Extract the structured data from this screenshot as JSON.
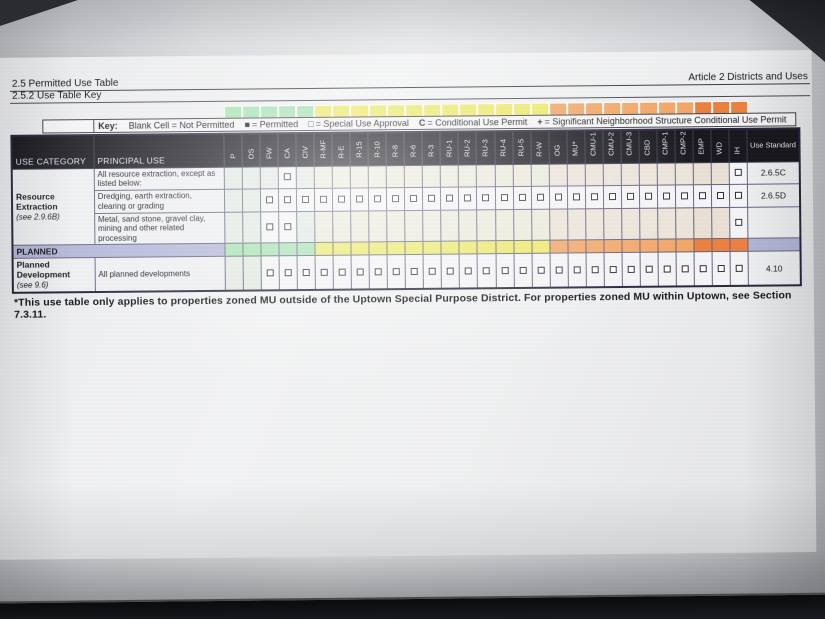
{
  "header": {
    "section_title": "2.5 Permitted Use Table",
    "section_subtitle": "2.5.2 Use Table Key",
    "article_title": "Article 2 Districts and Uses"
  },
  "key": {
    "label": "Key:",
    "items": [
      {
        "symbol": "",
        "text": "Blank Cell = Not Permitted"
      },
      {
        "symbol": "■",
        "text": "= Permitted"
      },
      {
        "symbol": "□",
        "text": "= Special Use Approval"
      },
      {
        "symbol": "C",
        "text": "= Conditional Use Permit"
      },
      {
        "symbol": "+",
        "text": "= Significant Neighborhood Structure Conditional Use Permit"
      }
    ]
  },
  "colors": {
    "header_bg": "#17171d",
    "group_green": "#a6e2b0",
    "group_yellow": "#ece968",
    "group_orange_light": "#f2a768",
    "group_orange_dark": "#ec8140",
    "planned_band": "#b2b6d6",
    "tint_green": "#e2e9e2",
    "tint_yellow": "#eceadb",
    "tint_orange_light": "#ece4d9",
    "tint_orange_dark": "#eadfd3",
    "cell_marked": "#f4f4f6"
  },
  "table": {
    "headers": {
      "use_category": "USE CATEGORY",
      "principal_use": "PRINCIPAL USE",
      "use_standard": "Use Standard"
    },
    "mark_symbol": "□",
    "districts": [
      {
        "label": "P",
        "group": "green"
      },
      {
        "label": "OS",
        "group": "green"
      },
      {
        "label": "FW",
        "group": "green"
      },
      {
        "label": "CA",
        "group": "green"
      },
      {
        "label": "CIV",
        "group": "green"
      },
      {
        "label": "R-MF",
        "group": "yellow"
      },
      {
        "label": "R-E",
        "group": "yellow"
      },
      {
        "label": "R-15",
        "group": "yellow"
      },
      {
        "label": "R-10",
        "group": "yellow"
      },
      {
        "label": "R-8",
        "group": "yellow"
      },
      {
        "label": "R-6",
        "group": "yellow"
      },
      {
        "label": "R-3",
        "group": "yellow"
      },
      {
        "label": "RU-1",
        "group": "yellow"
      },
      {
        "label": "RU-2",
        "group": "yellow"
      },
      {
        "label": "RU-3",
        "group": "yellow"
      },
      {
        "label": "RU-4",
        "group": "yellow"
      },
      {
        "label": "RU-5",
        "group": "yellow"
      },
      {
        "label": "R-W",
        "group": "yellow"
      },
      {
        "label": "OG",
        "group": "orange_light"
      },
      {
        "label": "MU*",
        "group": "orange_light"
      },
      {
        "label": "CMU-1",
        "group": "orange_light"
      },
      {
        "label": "CMU-2",
        "group": "orange_light"
      },
      {
        "label": "CMU-3",
        "group": "orange_light"
      },
      {
        "label": "CBD",
        "group": "orange_light"
      },
      {
        "label": "CMP-1",
        "group": "orange_light"
      },
      {
        "label": "CMP-2",
        "group": "orange_light"
      },
      {
        "label": "EMP",
        "group": "orange_dark"
      },
      {
        "label": "WD",
        "group": "orange_dark"
      },
      {
        "label": "IH",
        "group": "orange_dark"
      }
    ],
    "rows": [
      {
        "type": "use",
        "category": "Resource Extraction",
        "category_note": "(see 2.9.6B)",
        "rowspan": 3,
        "principal_use": "All resource extraction, except as listed below:",
        "marks": [
          "CA",
          "IH"
        ],
        "use_standard": "2.6.5C"
      },
      {
        "type": "use",
        "principal_use": "Dredging, earth extraction, clearing or grading",
        "marks": [
          "FW",
          "CA",
          "CIV",
          "R-MF",
          "R-E",
          "R-15",
          "R-10",
          "R-8",
          "R-6",
          "R-3",
          "RU-1",
          "RU-2",
          "RU-3",
          "RU-4",
          "RU-5",
          "R-W",
          "OG",
          "MU*",
          "CMU-1",
          "CMU-2",
          "CMU-3",
          "CBD",
          "CMP-1",
          "CMP-2",
          "EMP",
          "WD",
          "IH"
        ],
        "use_standard": "2.6.5D"
      },
      {
        "type": "use",
        "principal_use": "Metal, sand stone, gravel clay, mining and other related processing",
        "marks": [
          "FW",
          "CA",
          "IH"
        ],
        "use_standard": ""
      },
      {
        "type": "section",
        "label": "PLANNED"
      },
      {
        "type": "use",
        "category": "Planned Development",
        "category_note": "(see 9.6)",
        "rowspan": 1,
        "principal_use": "All planned developments",
        "marks": [
          "FW",
          "CA",
          "CIV",
          "R-MF",
          "R-E",
          "R-15",
          "R-10",
          "R-8",
          "R-6",
          "R-3",
          "RU-1",
          "RU-2",
          "RU-3",
          "RU-4",
          "RU-5",
          "R-W",
          "OG",
          "MU*",
          "CMU-1",
          "CMU-2",
          "CMU-3",
          "CBD",
          "CMP-1",
          "CMP-2",
          "EMP",
          "WD",
          "IH"
        ],
        "use_standard": "4.10"
      }
    ]
  },
  "footnote": "*This use table only applies to properties zoned MU outside of the Uptown Special Purpose District. For properties zoned MU within Uptown, see Section 7.3.11."
}
